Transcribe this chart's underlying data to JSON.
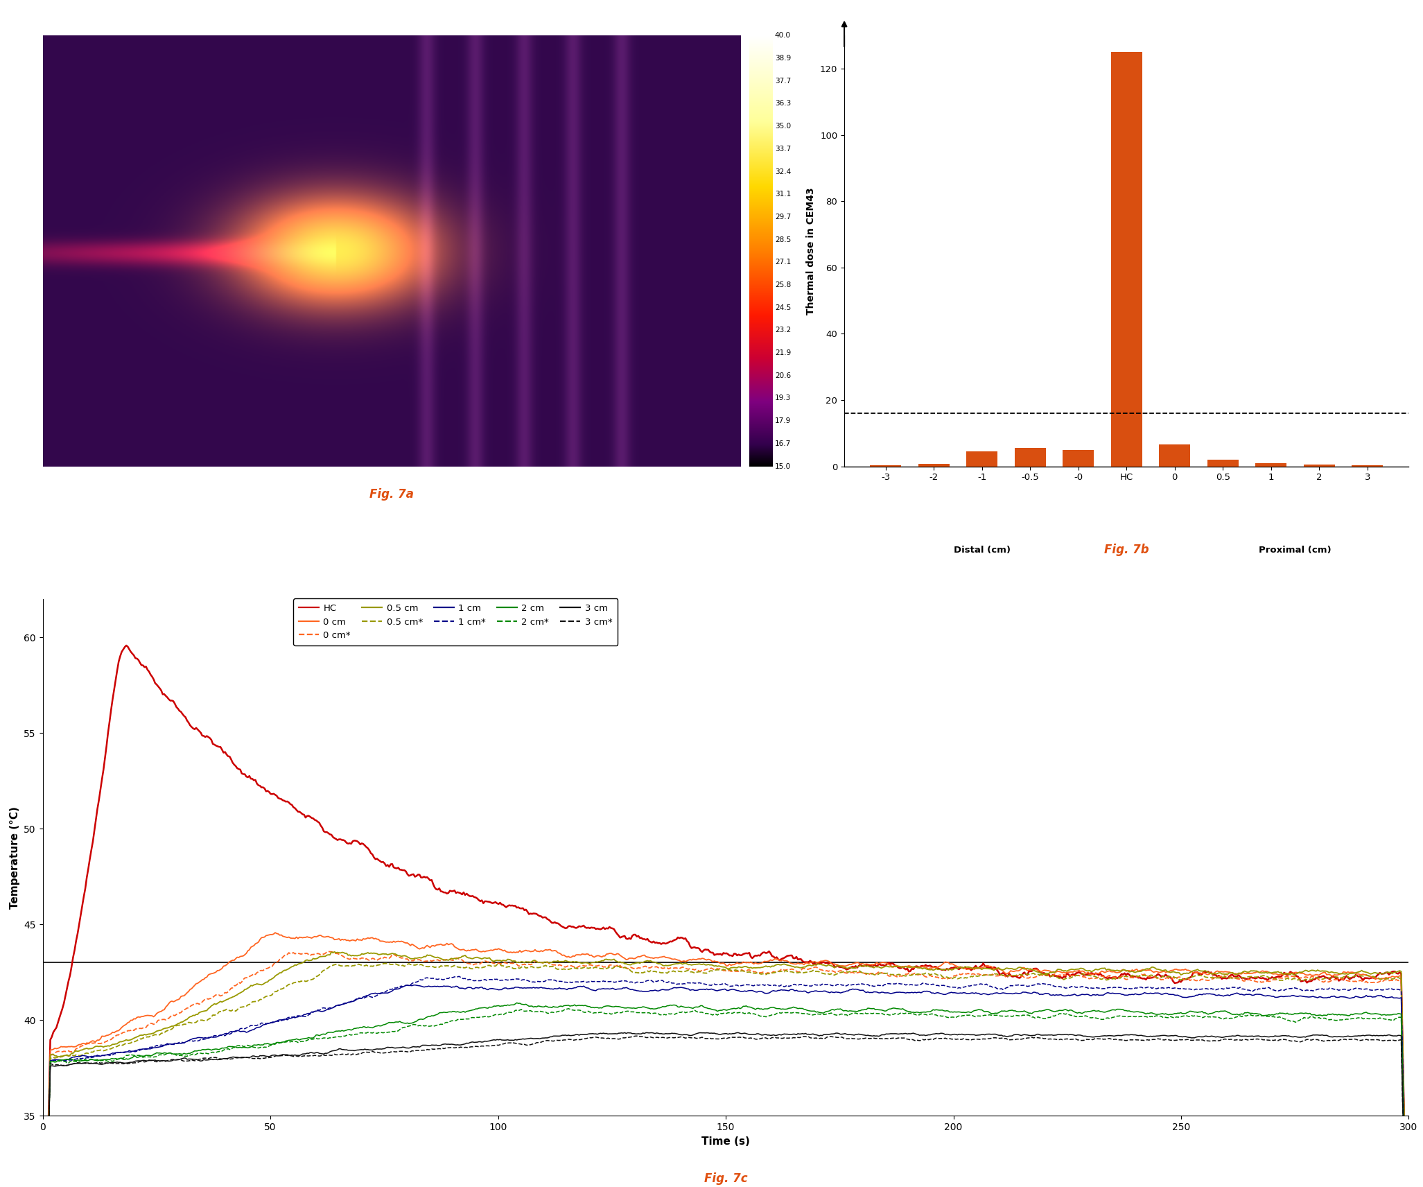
{
  "bar_categories": [
    "-3",
    "-2",
    "-1",
    "-0.5",
    "-0",
    "HC",
    "0",
    "0.5",
    "1",
    "2",
    "3"
  ],
  "bar_values": [
    0.3,
    0.8,
    4.5,
    5.5,
    5.0,
    125.0,
    6.5,
    2.0,
    1.0,
    0.5,
    0.3
  ],
  "bar_color": "#D94F10",
  "bar_ylabel": "Thermal dose in CEM43",
  "bar_dashed_line": 16,
  "bar_xlabel_left": "Distal (cm)",
  "bar_xlabel_right": "Proximal (cm)",
  "bar_ylim": [
    0,
    130
  ],
  "bar_yticks": [
    0,
    20,
    40,
    60,
    80,
    100,
    120
  ],
  "colorbar_values": [
    "40.0",
    "38.9",
    "37.7",
    "36.3",
    "35.0",
    "33.7",
    "32.4",
    "31.1",
    "29.7",
    "28.5",
    "27.1",
    "25.8",
    "24.5",
    "23.2",
    "21.9",
    "20.6",
    "19.3",
    "17.9",
    "16.7",
    "15.0"
  ],
  "fig7a_label": "Fig. 7a",
  "fig7b_label": "Fig. 7b",
  "fig7c_label": "Fig. 7c",
  "label_color": "#E05010",
  "temp_ylabel": "Temperature (°C)",
  "temp_xlabel": "Time (s)",
  "temp_ylim": [
    35,
    62
  ],
  "temp_yticks": [
    35,
    40,
    45,
    50,
    55,
    60
  ],
  "temp_xlim": [
    0,
    300
  ],
  "temp_xticks": [
    0,
    50,
    100,
    150,
    200,
    250,
    300
  ],
  "temp_hline": 43.0,
  "legend_entries": [
    {
      "label": "HC",
      "color": "#CC0000",
      "linestyle": "solid"
    },
    {
      "label": "0 cm",
      "color": "#FF6622",
      "linestyle": "solid"
    },
    {
      "label": "0 cm*",
      "color": "#FF6622",
      "linestyle": "dashed"
    },
    {
      "label": "0.5 cm",
      "color": "#999900",
      "linestyle": "solid"
    },
    {
      "label": "0.5 cm*",
      "color": "#999900",
      "linestyle": "dashed"
    },
    {
      "label": "1 cm",
      "color": "#000088",
      "linestyle": "solid"
    },
    {
      "label": "1 cm*",
      "color": "#000088",
      "linestyle": "dashed"
    },
    {
      "label": "2 cm",
      "color": "#008800",
      "linestyle": "solid"
    },
    {
      "label": "2 cm*",
      "color": "#008800",
      "linestyle": "dashed"
    },
    {
      "label": "3 cm",
      "color": "#111111",
      "linestyle": "solid"
    },
    {
      "label": "3 cm*",
      "color": "#111111",
      "linestyle": "dashed"
    }
  ]
}
